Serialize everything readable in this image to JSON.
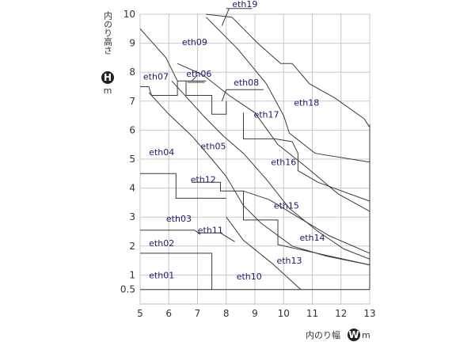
{
  "chart_data": {
    "type": "line",
    "xlim": [
      5,
      13
    ],
    "ylim": [
      0,
      10
    ],
    "grid": true,
    "x_ticks": [
      "5",
      "6",
      "7",
      "8",
      "9",
      "10",
      "11",
      "12",
      "13"
    ],
    "y_ticks": [
      "0.5",
      "1",
      "2",
      "3",
      "4",
      "5",
      "6",
      "7",
      "8",
      "9",
      "10"
    ],
    "x_title": {
      "prefix": "内のり幅",
      "badge": "W",
      "unit": "m"
    },
    "y_title": {
      "prefix": "内のり高さ",
      "badge": "H",
      "unit": "m"
    },
    "boundaries": [
      {
        "name": "eth01-top",
        "points": [
          [
            5,
            1.75
          ],
          [
            7.5,
            1.75
          ],
          [
            7.5,
            0.5
          ]
        ]
      },
      {
        "name": "eth02-top",
        "points": [
          [
            5,
            2.55
          ],
          [
            6.9,
            2.55
          ],
          [
            7.1,
            2.4
          ]
        ]
      },
      {
        "name": "eth03-top",
        "points": [
          [
            5,
            4.5
          ],
          [
            6.25,
            4.5
          ],
          [
            6.25,
            3.65
          ],
          [
            8.0,
            3.65
          ]
        ]
      },
      {
        "name": "eth07-eth04",
        "points": [
          [
            5,
            7.5
          ],
          [
            5.3,
            7.5
          ],
          [
            5.4,
            7.2
          ],
          [
            6.3,
            7.2
          ],
          [
            6.3,
            7.7
          ],
          [
            7.3,
            7.7
          ]
        ]
      },
      {
        "name": "eth04-eth05",
        "points": [
          [
            5.3,
            7.3
          ],
          [
            6.0,
            6.55
          ],
          [
            6.8,
            5.8
          ],
          [
            7.5,
            5.0
          ],
          [
            8.0,
            4.4
          ],
          [
            8.6,
            3.4
          ],
          [
            9.2,
            2.8
          ],
          [
            10.3,
            2.0
          ],
          [
            11.5,
            1.65
          ],
          [
            13,
            1.35
          ]
        ]
      },
      {
        "name": "eth05-eth16",
        "points": [
          [
            6.1,
            7.7
          ],
          [
            7.2,
            6.5
          ],
          [
            7.9,
            5.8
          ],
          [
            8.6,
            5.2
          ],
          [
            9.4,
            4.3
          ],
          [
            10.2,
            3.3
          ],
          [
            11.2,
            2.5
          ],
          [
            12.1,
            1.9
          ],
          [
            13,
            1.55
          ]
        ]
      },
      {
        "name": "eth06-upper",
        "points": [
          [
            6.6,
            7.7
          ],
          [
            6.6,
            7.2
          ],
          [
            7.0,
            7.2
          ],
          [
            7.5,
            7.2
          ],
          [
            7.5,
            6.55
          ],
          [
            8.0,
            6.55
          ],
          [
            8.0,
            7.0
          ]
        ]
      },
      {
        "name": "eth06-tick",
        "points": [
          [
            6.65,
            7.65
          ],
          [
            7.25,
            7.65
          ]
        ]
      },
      {
        "name": "eth08-tick",
        "points": [
          [
            8.0,
            7.4
          ],
          [
            9.3,
            7.4
          ]
        ]
      },
      {
        "name": "eth08-link",
        "points": [
          [
            8.0,
            7.4
          ],
          [
            7.85,
            7.0
          ]
        ]
      },
      {
        "name": "eth09-eth17",
        "points": [
          [
            5,
            9.5
          ],
          [
            5.9,
            8.5
          ],
          [
            6.3,
            7.7
          ]
        ]
      },
      {
        "name": "eth09-eth18",
        "points": [
          [
            6.3,
            8.3
          ],
          [
            7.2,
            7.9
          ],
          [
            8.1,
            7.2
          ],
          [
            9.0,
            6.6
          ],
          [
            9.8,
            5.5
          ],
          [
            10.7,
            4.8
          ],
          [
            11.9,
            3.8
          ],
          [
            13,
            3.2
          ]
        ]
      },
      {
        "name": "eth12-step",
        "points": [
          [
            6.8,
            4.2
          ],
          [
            7.8,
            4.2
          ],
          [
            7.8,
            3.9
          ],
          [
            8.6,
            3.9
          ],
          [
            8.6,
            2.9
          ],
          [
            9.8,
            2.9
          ],
          [
            9.8,
            2.05
          ],
          [
            13,
            1.35
          ]
        ]
      },
      {
        "name": "eth11-tick",
        "points": [
          [
            7.0,
            2.45
          ],
          [
            7.8,
            2.45
          ],
          [
            8.3,
            2.15
          ]
        ]
      },
      {
        "name": "eth10-curve",
        "points": [
          [
            8.0,
            3.0
          ],
          [
            8.6,
            2.2
          ],
          [
            9.6,
            1.4
          ],
          [
            10.6,
            0.5
          ]
        ]
      },
      {
        "name": "eth15-curve",
        "points": [
          [
            8.6,
            3.9
          ],
          [
            9.5,
            3.6
          ],
          [
            10.5,
            3.0
          ],
          [
            11.6,
            2.35
          ],
          [
            13,
            1.75
          ]
        ]
      },
      {
        "name": "eth16-step",
        "points": [
          [
            8.6,
            6.6
          ],
          [
            8.6,
            5.7
          ],
          [
            9.7,
            5.7
          ],
          [
            10.3,
            5.6
          ],
          [
            10.5,
            5.2
          ],
          [
            10.5,
            4.6
          ],
          [
            11.2,
            4.2
          ],
          [
            13,
            3.55
          ]
        ]
      },
      {
        "name": "eth17-eth18",
        "points": [
          [
            7.3,
            9.9
          ],
          [
            8.4,
            8.8
          ],
          [
            9.4,
            7.6
          ],
          [
            10.0,
            6.5
          ],
          [
            10.2,
            5.9
          ],
          [
            11.1,
            5.2
          ],
          [
            13,
            4.9
          ]
        ]
      },
      {
        "name": "eth19-outer",
        "points": [
          [
            7.3,
            10.0
          ],
          [
            8.2,
            9.9
          ],
          [
            9.1,
            9.0
          ],
          [
            9.9,
            8.3
          ],
          [
            10.3,
            8.3
          ],
          [
            10.9,
            7.6
          ],
          [
            11.8,
            7.1
          ],
          [
            12.8,
            6.4
          ],
          [
            13,
            6.1
          ],
          [
            13,
            1.7
          ]
        ]
      },
      {
        "name": "eth19-tick",
        "points": [
          [
            8.0,
            10.2
          ],
          [
            8.9,
            10.2
          ]
        ]
      },
      {
        "name": "eth19-link",
        "points": [
          [
            8.1,
            10.2
          ],
          [
            7.85,
            9.6
          ]
        ]
      },
      {
        "name": "eth09-eth08-link",
        "points": [
          [
            7.0,
            7.9
          ],
          [
            6.8,
            7.7
          ]
        ]
      },
      {
        "name": "base",
        "points": [
          [
            5,
            0.5
          ],
          [
            13,
            0.5
          ]
        ]
      },
      {
        "name": "right-edge",
        "points": [
          [
            13,
            0.5
          ],
          [
            13,
            6.2
          ]
        ]
      }
    ],
    "regions": [
      {
        "label": "eth01",
        "x": 5.75,
        "y": 1.0
      },
      {
        "label": "eth02",
        "x": 5.75,
        "y": 2.1
      },
      {
        "label": "eth03",
        "x": 6.35,
        "y": 2.95
      },
      {
        "label": "eth04",
        "x": 5.75,
        "y": 5.25
      },
      {
        "label": "eth05",
        "x": 7.55,
        "y": 5.45
      },
      {
        "label": "eth06",
        "x": 7.05,
        "y": 7.95
      },
      {
        "label": "eth07",
        "x": 5.55,
        "y": 7.85
      },
      {
        "label": "eth08",
        "x": 8.7,
        "y": 7.65
      },
      {
        "label": "eth09",
        "x": 6.9,
        "y": 9.05
      },
      {
        "label": "eth10",
        "x": 8.8,
        "y": 0.95
      },
      {
        "label": "eth11",
        "x": 7.45,
        "y": 2.55
      },
      {
        "label": "eth12",
        "x": 7.2,
        "y": 4.3
      },
      {
        "label": "eth13",
        "x": 10.2,
        "y": 1.5
      },
      {
        "label": "eth14",
        "x": 11.0,
        "y": 2.3
      },
      {
        "label": "eth15",
        "x": 10.1,
        "y": 3.4
      },
      {
        "label": "eth16",
        "x": 10.0,
        "y": 4.9
      },
      {
        "label": "eth17",
        "x": 9.4,
        "y": 6.55
      },
      {
        "label": "eth18",
        "x": 10.8,
        "y": 6.95
      },
      {
        "label": "eth19",
        "x": 8.65,
        "y": 10.35
      }
    ]
  }
}
